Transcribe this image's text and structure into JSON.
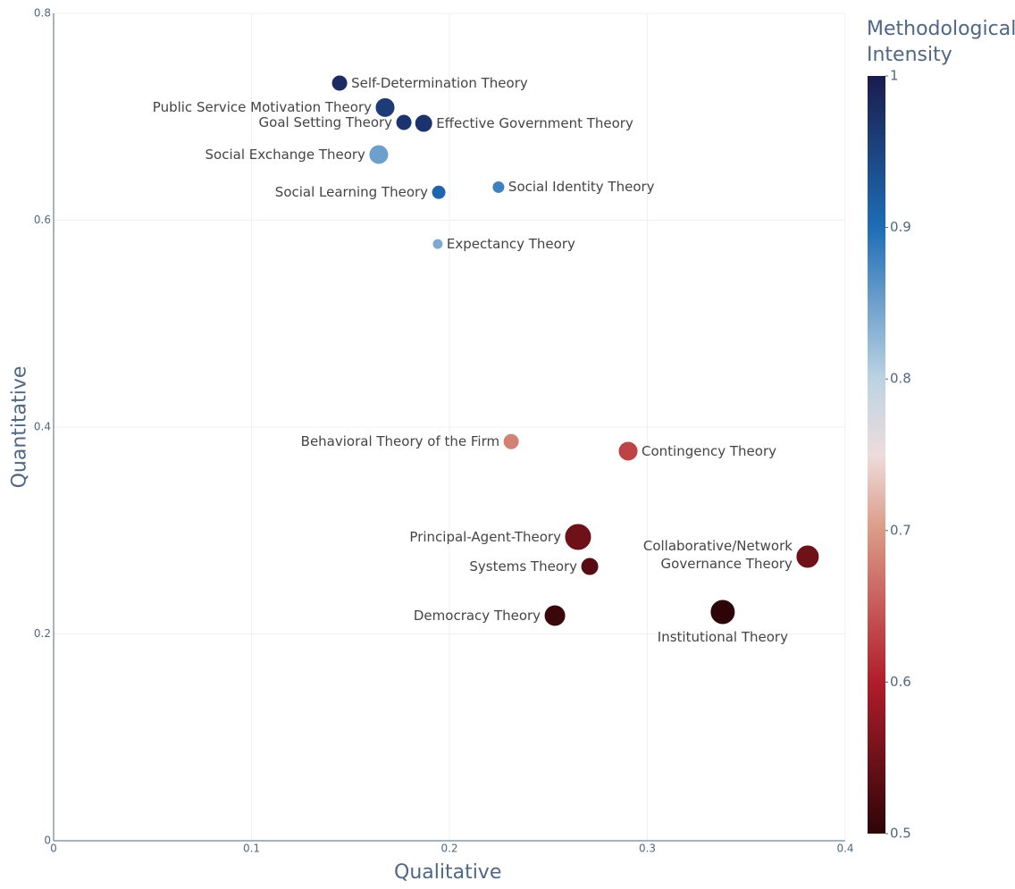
{
  "chart_data": {
    "type": "scatter",
    "x_label": "Qualitative",
    "y_label": "Quantitative",
    "xlim": [
      0,
      0.4
    ],
    "ylim": [
      0,
      0.8
    ],
    "xticks": [
      0,
      0.1,
      0.2,
      0.3,
      0.4
    ],
    "yticks": [
      0,
      0.2,
      0.4,
      0.6,
      0.8
    ],
    "grid": true,
    "labels": [
      "Self-Determination Theory",
      "Public Service Motivation Theory",
      "Goal Setting Theory",
      "Effective Government Theory",
      "Social Exchange Theory",
      "Social Learning Theory",
      "Social Identity Theory",
      "Expectancy Theory",
      "Behavioral Theory of the Firm",
      "Contingency Theory",
      "Principal-Agent-Theory",
      "Systems Theory",
      "Collaborative/Network Governance Theory",
      "Democracy Theory",
      "Institutional Theory"
    ],
    "x": [
      0.1445,
      0.1675,
      0.177,
      0.187,
      0.1643,
      0.1946,
      0.2248,
      0.1941,
      0.2312,
      0.2903,
      0.265,
      0.2709,
      0.381,
      0.2533,
      0.3381
    ],
    "y": [
      0.7326,
      0.709,
      0.6946,
      0.6937,
      0.6635,
      0.627,
      0.632,
      0.577,
      0.386,
      0.3767,
      0.2937,
      0.2652,
      0.2747,
      0.2177,
      0.2212
    ],
    "sizes": [
      9,
      11,
      9,
      10,
      11,
      8,
      7,
      6,
      9,
      11,
      15,
      10,
      13,
      12,
      14
    ],
    "color_values": [
      0.98,
      0.96,
      0.97,
      0.97,
      0.85,
      0.91,
      0.88,
      0.84,
      0.68,
      0.63,
      0.55,
      0.53,
      0.55,
      0.51,
      0.5
    ],
    "colorbar": {
      "title": "Methodological Intensity",
      "lim": [
        0.5,
        1
      ],
      "ticks": [
        0.5,
        0.6,
        0.7,
        0.8,
        0.9,
        1
      ],
      "colorscale": [
        [
          0,
          "#2d0508"
        ],
        [
          0.2,
          "#b11d2a"
        ],
        [
          0.4,
          "#dc9a86"
        ],
        [
          0.5,
          "#eddcdc"
        ],
        [
          0.6,
          "#bcd3e2"
        ],
        [
          0.8,
          "#1e6db6"
        ],
        [
          1,
          "#1a1c4d"
        ]
      ]
    }
  }
}
